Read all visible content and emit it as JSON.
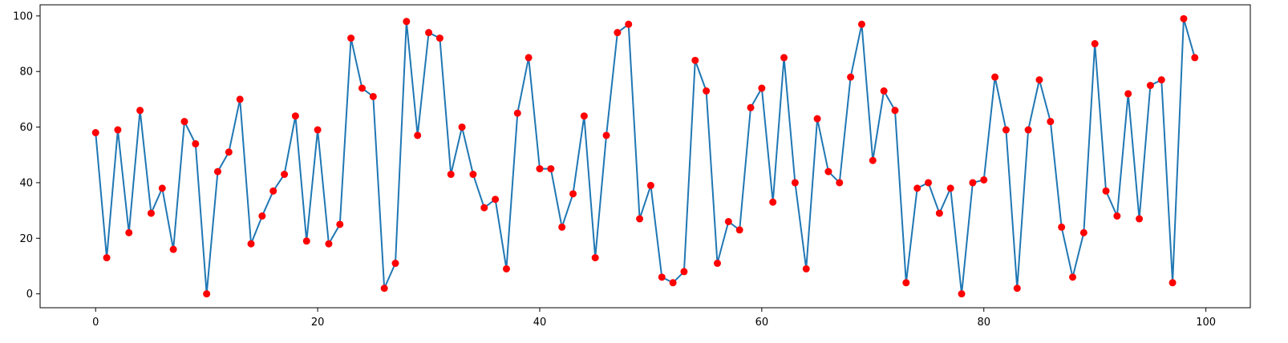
{
  "chart_data": {
    "type": "line",
    "title": "",
    "xlabel": "",
    "ylabel": "",
    "xlim": [
      -5,
      104
    ],
    "ylim": [
      -5,
      104
    ],
    "x_ticks": [
      0,
      20,
      40,
      60,
      80,
      100
    ],
    "y_ticks": [
      0,
      20,
      40,
      60,
      80,
      100
    ],
    "grid": false,
    "legend": "none",
    "line_color": "#1f77b4",
    "marker_color": "#ff0000",
    "series": [
      {
        "x": [
          0,
          1,
          2,
          3,
          4,
          5,
          6,
          7,
          8,
          9,
          10,
          11,
          12,
          13,
          14,
          15,
          16,
          17,
          18,
          19,
          20,
          21,
          22,
          23,
          24,
          25,
          26,
          27,
          28,
          29,
          30,
          31,
          32,
          33,
          34,
          35,
          36,
          37,
          38,
          39,
          40,
          41,
          42,
          43,
          44,
          45,
          46,
          47,
          48,
          49,
          50,
          51,
          52,
          53,
          54,
          55,
          56,
          57,
          58,
          59,
          60,
          61,
          62,
          63,
          64,
          65,
          66,
          67,
          68,
          69,
          70,
          71,
          72,
          73,
          74,
          75,
          76,
          77,
          78,
          79,
          80,
          81,
          82,
          83,
          84,
          85,
          86,
          87,
          88,
          89,
          90,
          91,
          92,
          93,
          94,
          95,
          96,
          97,
          98,
          99
        ],
        "values": [
          58,
          13,
          59,
          22,
          66,
          29,
          38,
          16,
          62,
          54,
          0,
          44,
          51,
          70,
          18,
          28,
          37,
          43,
          64,
          19,
          59,
          18,
          25,
          92,
          74,
          71,
          2,
          11,
          98,
          57,
          94,
          92,
          43,
          60,
          43,
          31,
          34,
          9,
          65,
          85,
          45,
          45,
          24,
          36,
          64,
          13,
          57,
          94,
          97,
          27,
          39,
          6,
          4,
          8,
          84,
          73,
          11,
          26,
          23,
          67,
          74,
          33,
          85,
          40,
          9,
          63,
          44,
          40,
          78,
          97,
          48,
          73,
          66,
          4,
          38,
          40,
          29,
          38,
          0,
          40,
          41,
          78,
          59,
          2,
          59,
          77,
          62,
          24,
          6,
          22,
          90,
          37,
          28,
          72,
          27,
          75,
          77,
          4,
          99,
          85
        ]
      }
    ]
  }
}
